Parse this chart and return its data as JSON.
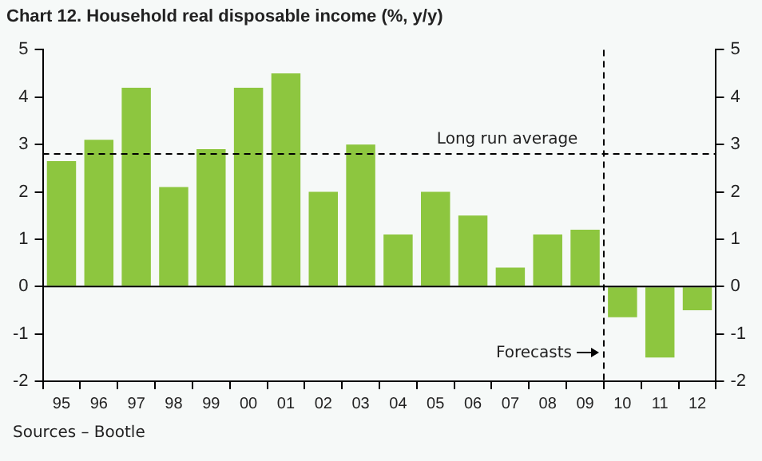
{
  "chart_data": {
    "type": "bar",
    "title": "Chart 12. Household real disposable income (%, y/y)",
    "categories": [
      "95",
      "96",
      "97",
      "98",
      "99",
      "00",
      "01",
      "02",
      "03",
      "04",
      "05",
      "06",
      "07",
      "08",
      "09",
      "10",
      "11",
      "12"
    ],
    "values": [
      2.65,
      3.1,
      4.2,
      2.1,
      2.9,
      4.2,
      4.5,
      2.0,
      3.0,
      1.1,
      2.0,
      1.5,
      0.4,
      1.1,
      1.2,
      -0.65,
      -1.5,
      -0.5
    ],
    "color": "#8dc63f",
    "ylim": [
      -2,
      5
    ],
    "yticks": [
      -2,
      -1,
      0,
      1,
      2,
      3,
      4,
      5
    ],
    "y2lim": [
      -2,
      5
    ],
    "y2ticks": [
      -2,
      -1,
      0,
      1,
      2,
      3,
      4,
      5
    ],
    "ref_lines": [
      {
        "axis": "y",
        "value": 2.8,
        "label": "Long run average",
        "line_style": "dashed"
      },
      {
        "axis": "x",
        "value": "10",
        "label": "Forecasts",
        "line_style": "dashed"
      }
    ],
    "annotations": [
      "Sources – Bootle"
    ]
  }
}
